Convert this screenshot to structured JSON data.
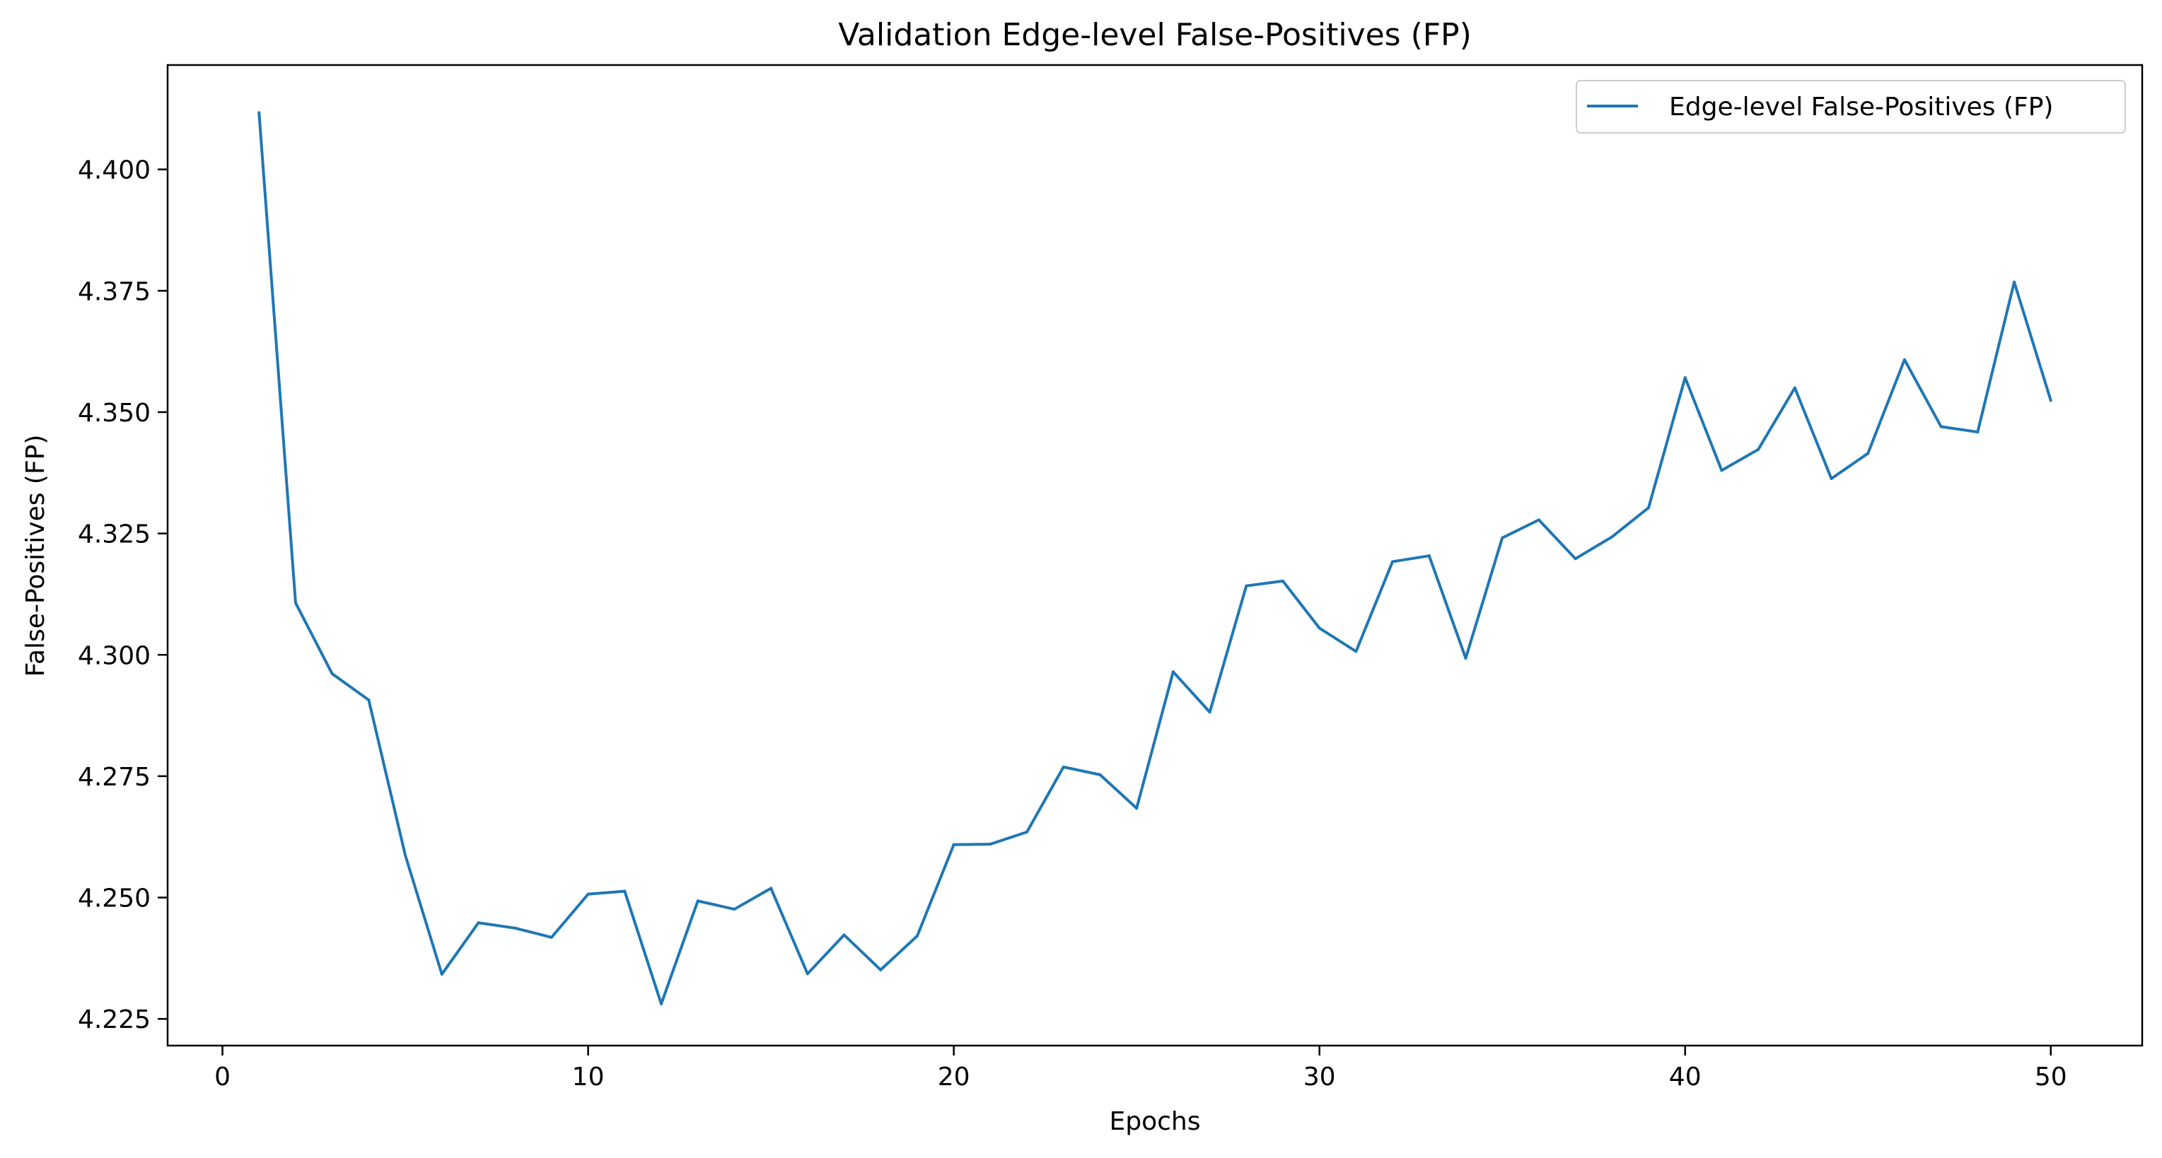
{
  "chart_data": {
    "type": "line",
    "title": "Validation Edge-level False-Positives (FP)",
    "xlabel": "Epochs",
    "ylabel": "False-Positives (FP)",
    "xlim": [
      -1.5,
      52.5
    ],
    "ylim": [
      4.2195,
      4.4215
    ],
    "xticks": [
      0,
      10,
      20,
      30,
      40,
      50
    ],
    "xtick_labels": [
      "0",
      "10",
      "20",
      "30",
      "40",
      "50"
    ],
    "yticks": [
      4.225,
      4.25,
      4.275,
      4.3,
      4.325,
      4.35,
      4.375,
      4.4
    ],
    "ytick_labels": [
      "4.225",
      "4.250",
      "4.275",
      "4.300",
      "4.325",
      "4.350",
      "4.375",
      "4.400"
    ],
    "grid": false,
    "legend_position": "top-right",
    "series": [
      {
        "name": "Edge-level False-Positives (FP)",
        "color": "#1f77b4",
        "x": [
          1,
          2,
          3,
          4,
          5,
          6,
          7,
          8,
          9,
          10,
          11,
          12,
          13,
          14,
          15,
          16,
          17,
          18,
          19,
          20,
          21,
          22,
          23,
          24,
          25,
          26,
          27,
          28,
          29,
          30,
          31,
          32,
          33,
          34,
          35,
          36,
          37,
          38,
          39,
          40,
          41,
          42,
          43,
          44,
          45,
          46,
          47,
          48,
          49,
          50
        ],
        "y": [
          4.4117,
          4.3107,
          4.2961,
          4.2907,
          4.2587,
          4.2342,
          4.2448,
          4.2437,
          4.2418,
          4.2507,
          4.2513,
          4.2281,
          4.2493,
          4.2476,
          4.2519,
          4.2343,
          4.2423,
          4.2351,
          4.2421,
          4.2609,
          4.261,
          4.2635,
          4.2769,
          4.2753,
          4.2684,
          4.2965,
          4.2882,
          4.3142,
          4.3152,
          4.3055,
          4.3007,
          4.3192,
          4.3204,
          4.2993,
          4.3241,
          4.3278,
          4.3198,
          4.3243,
          4.3303,
          4.3571,
          4.338,
          4.3423,
          4.355,
          4.3363,
          4.3415,
          4.3608,
          4.347,
          4.3459,
          4.3768,
          4.3524
        ]
      }
    ]
  }
}
